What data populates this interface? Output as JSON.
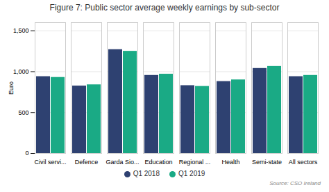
{
  "chart_data": {
    "type": "bar",
    "title": "Figure 7: Public sector average weekly earnings by sub-sector",
    "ylabel": "Euro",
    "categories": [
      "Civil servi...",
      "Defence",
      "Garda Sio...",
      "Education",
      "Regional ...",
      "Health",
      "Semi-state",
      "All sectors"
    ],
    "series": [
      {
        "name": "Q1 2018",
        "color": "#2e4171",
        "values": [
          940,
          825,
          1270,
          955,
          830,
          880,
          1040,
          940
        ]
      },
      {
        "name": "Q1 2019",
        "color": "#1aaa85",
        "values": [
          930,
          840,
          1250,
          970,
          820,
          900,
          1065,
          955
        ]
      }
    ],
    "ylim": [
      0,
      1600
    ],
    "yticks": [
      0,
      500,
      1000,
      1500
    ],
    "grid": true,
    "legend": "bottom",
    "annotation": "Source: CSO Ireland"
  }
}
